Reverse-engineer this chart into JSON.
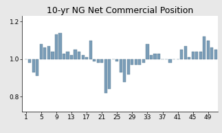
{
  "title": "10-yr NG Net Commercial Position",
  "values": [
    1.0,
    0.98,
    0.93,
    0.91,
    1.08,
    1.06,
    1.07,
    1.04,
    1.13,
    1.14,
    1.03,
    1.04,
    1.02,
    1.05,
    1.04,
    1.02,
    1.01,
    1.1,
    0.99,
    0.98,
    0.98,
    0.82,
    0.84,
    1.0,
    0.99,
    0.93,
    0.88,
    0.92,
    0.97,
    0.97,
    0.97,
    0.98,
    1.08,
    1.02,
    1.03,
    1.03,
    1.0,
    1.0,
    0.98,
    1.0,
    1.0,
    1.05,
    1.07,
    1.01,
    1.04,
    1.04,
    1.04,
    1.12,
    1.1,
    1.06,
    1.05
  ],
  "baseline": 1.0,
  "bar_color": "#7a9db8",
  "bar_edge_color": "#5a7a90",
  "ylim": [
    0.72,
    1.23
  ],
  "yticks": [
    0.8,
    1.0,
    1.2
  ],
  "xtick_positions": [
    1,
    5,
    9,
    13,
    17,
    21,
    25,
    29,
    33,
    37,
    41,
    45,
    49
  ],
  "xtick_labels": [
    "1",
    "5",
    "9",
    "13",
    "17",
    "21",
    "25",
    "29",
    "33",
    "37",
    "41",
    "45",
    "49"
  ],
  "title_fontsize": 9,
  "tick_fontsize": 6.5,
  "background_color": "#e8e8e8",
  "plot_bg_color": "#ffffff"
}
